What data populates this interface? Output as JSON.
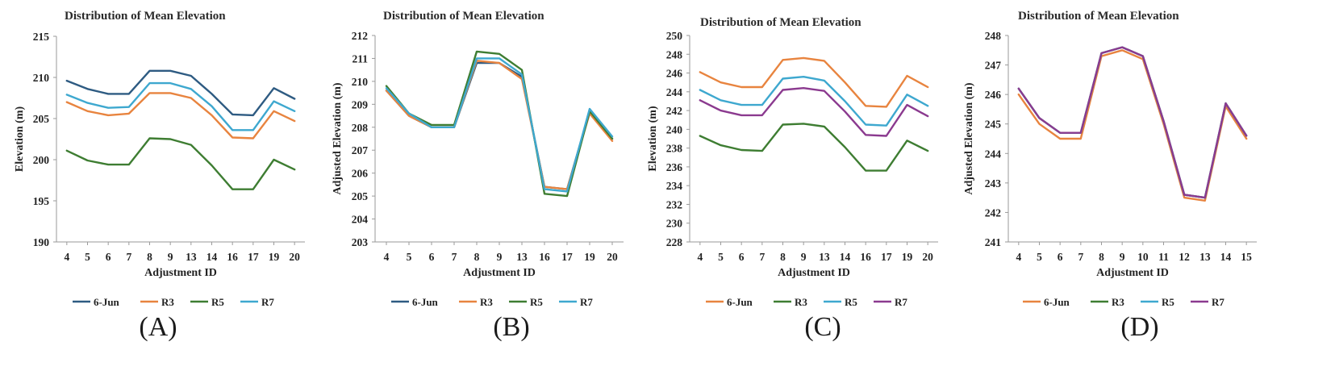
{
  "chart_data": [
    {
      "type": "line",
      "panel_label": "(A)",
      "title": "Distribution of Mean Elevation",
      "xlabel": "Adjustment ID",
      "ylabel": "Elevation (m)",
      "categories": [
        "4",
        "5",
        "6",
        "7",
        "8",
        "9",
        "13",
        "14",
        "16",
        "17",
        "19",
        "20"
      ],
      "ylim": [
        190,
        215
      ],
      "yticks": [
        "190",
        "195",
        "200",
        "205",
        "210",
        "215"
      ],
      "series": [
        {
          "name": "6-Jun",
          "color": "#2e5b82",
          "values": [
            209.6,
            208.6,
            208.0,
            208.0,
            210.8,
            210.8,
            210.2,
            208.0,
            205.5,
            205.4,
            208.7,
            207.4
          ]
        },
        {
          "name": "R3",
          "color": "#e8843f",
          "values": [
            207.0,
            205.9,
            205.4,
            205.6,
            208.1,
            208.1,
            207.5,
            205.4,
            202.7,
            202.6,
            205.9,
            204.7
          ]
        },
        {
          "name": "R5",
          "color": "#3e7d32",
          "values": [
            201.1,
            199.9,
            199.4,
            199.4,
            202.6,
            202.5,
            201.8,
            199.3,
            196.4,
            196.4,
            200.0,
            198.8
          ]
        },
        {
          "name": "R7",
          "color": "#3ea8cf",
          "values": [
            207.9,
            206.9,
            206.3,
            206.4,
            209.3,
            209.3,
            208.6,
            206.5,
            203.6,
            203.6,
            207.1,
            205.9
          ]
        }
      ],
      "legend": "bottom"
    },
    {
      "type": "line",
      "panel_label": "(B)",
      "title": "Distribution of Mean Elevation",
      "xlabel": "Adjustment ID",
      "ylabel": "Adjusted Elevation (m)",
      "categories": [
        "4",
        "5",
        "6",
        "7",
        "8",
        "9",
        "13",
        "16",
        "17",
        "19",
        "20"
      ],
      "ylim": [
        203,
        212
      ],
      "yticks": [
        "203",
        "204",
        "205",
        "206",
        "207",
        "208",
        "209",
        "210",
        "211",
        "212"
      ],
      "series": [
        {
          "name": "6-Jun",
          "color": "#2e5b82",
          "values": [
            209.6,
            208.5,
            208.0,
            208.0,
            210.8,
            210.8,
            210.2,
            205.4,
            205.3,
            208.7,
            207.5
          ]
        },
        {
          "name": "R3",
          "color": "#e8843f",
          "values": [
            209.6,
            208.5,
            208.0,
            208.0,
            210.9,
            210.8,
            210.1,
            205.4,
            205.3,
            208.6,
            207.4
          ]
        },
        {
          "name": "R5",
          "color": "#3e7d32",
          "values": [
            209.8,
            208.6,
            208.1,
            208.1,
            211.3,
            211.2,
            210.5,
            205.1,
            205.0,
            208.7,
            207.5
          ]
        },
        {
          "name": "R7",
          "color": "#3ea8cf",
          "values": [
            209.7,
            208.6,
            208.0,
            208.0,
            211.0,
            211.0,
            210.3,
            205.3,
            205.2,
            208.8,
            207.6
          ]
        }
      ],
      "legend": "bottom"
    },
    {
      "type": "line",
      "panel_label": "(C)",
      "title": "Distribution of Mean Elevation",
      "xlabel": "Adjustment ID",
      "ylabel": "Elevation (m)",
      "categories": [
        "4",
        "5",
        "6",
        "7",
        "8",
        "9",
        "13",
        "14",
        "16",
        "17",
        "19",
        "20"
      ],
      "ylim": [
        228,
        250
      ],
      "yticks": [
        "228",
        "230",
        "232",
        "234",
        "236",
        "238",
        "240",
        "242",
        "244",
        "246",
        "248",
        "250"
      ],
      "series": [
        {
          "name": "6-Jun",
          "color": "#e8843f",
          "values": [
            246.1,
            245.0,
            244.5,
            244.5,
            247.4,
            247.6,
            247.3,
            245.0,
            242.5,
            242.4,
            245.7,
            244.5
          ]
        },
        {
          "name": "R3",
          "color": "#3e7d32",
          "values": [
            239.3,
            238.3,
            237.8,
            237.7,
            240.5,
            240.6,
            240.3,
            238.1,
            235.6,
            235.6,
            238.8,
            237.7
          ]
        },
        {
          "name": "R5",
          "color": "#3ea8cf",
          "values": [
            244.2,
            243.1,
            242.6,
            242.6,
            245.4,
            245.6,
            245.2,
            243.0,
            240.5,
            240.4,
            243.7,
            242.5
          ]
        },
        {
          "name": "R7",
          "color": "#8b3a8f",
          "values": [
            243.1,
            242.0,
            241.5,
            241.5,
            244.2,
            244.4,
            244.1,
            241.9,
            239.4,
            239.3,
            242.6,
            241.4
          ]
        }
      ],
      "legend": "bottom"
    },
    {
      "type": "line",
      "panel_label": "(D)",
      "title": "Distribution of Mean Elevation",
      "xlabel": "Adjustment ID",
      "ylabel": "Adjusted Elevation (m)",
      "categories": [
        "4",
        "5",
        "6",
        "7",
        "8",
        "9",
        "10",
        "11",
        "12",
        "13",
        "14",
        "15"
      ],
      "ylim": [
        241,
        248
      ],
      "yticks": [
        "241",
        "242",
        "243",
        "244",
        "245",
        "246",
        "247",
        "248"
      ],
      "series": [
        {
          "name": "6-Jun",
          "color": "#e8843f",
          "values": [
            246.0,
            245.0,
            244.5,
            244.5,
            247.3,
            247.5,
            247.2,
            245.0,
            242.5,
            242.4,
            245.6,
            244.5
          ]
        },
        {
          "name": "R3",
          "color": "#3e7d32",
          "values": [
            246.2,
            245.2,
            244.7,
            244.7,
            247.4,
            247.6,
            247.3,
            245.1,
            242.6,
            242.5,
            245.7,
            244.6
          ]
        },
        {
          "name": "R5",
          "color": "#3ea8cf",
          "values": [
            246.2,
            245.2,
            244.7,
            244.7,
            247.4,
            247.6,
            247.3,
            245.1,
            242.6,
            242.5,
            245.7,
            244.6
          ]
        },
        {
          "name": "R7",
          "color": "#8b3a8f",
          "values": [
            246.2,
            245.2,
            244.7,
            244.7,
            247.4,
            247.6,
            247.3,
            245.1,
            242.6,
            242.5,
            245.7,
            244.6
          ]
        }
      ],
      "legend": "bottom"
    }
  ]
}
